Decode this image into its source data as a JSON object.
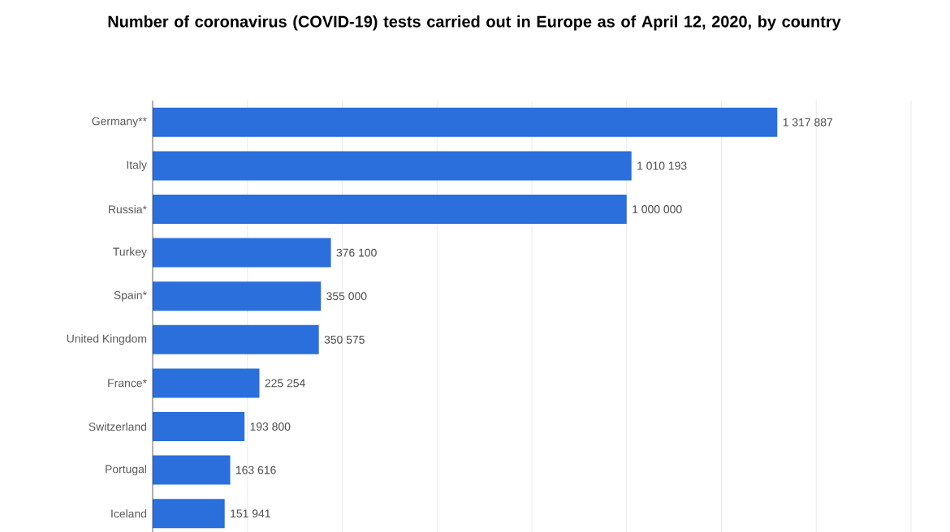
{
  "chart_data": {
    "type": "bar",
    "orientation": "horizontal",
    "title": "Number of coronavirus (COVID-19) tests carried out in Europe as of April 12, 2020, by country",
    "categories": [
      "Germany**",
      "Italy",
      "Russia*",
      "Turkey",
      "Spain*",
      "United Kingdom",
      "France*",
      "Switzerland",
      "Portugal",
      "Iceland"
    ],
    "values": [
      1317887,
      1010193,
      1000000,
      376100,
      355000,
      350575,
      225254,
      193800,
      163616,
      151941
    ],
    "value_labels": [
      "1 317 887",
      "1 010 193",
      "1 000 000",
      "376 100",
      "355 000",
      "350 575",
      "225 254",
      "193 800",
      "163 616",
      "151 941"
    ],
    "color": "#2a6fdb",
    "xlim": [
      0,
      1600000
    ],
    "xticks": [
      {
        "value": 0,
        "label": null
      },
      {
        "value": 200000,
        "label": null
      },
      {
        "value": 400000,
        "label": null
      },
      {
        "value": 600000,
        "label": null
      },
      {
        "value": 800000,
        "label": null
      },
      {
        "value": 1000000,
        "label": null
      },
      {
        "value": 1200000,
        "label": null
      },
      {
        "value": 1400000,
        "label": null
      },
      {
        "value": 1600000,
        "label": null
      }
    ],
    "tick_labels": "y",
    "grid": "x"
  }
}
